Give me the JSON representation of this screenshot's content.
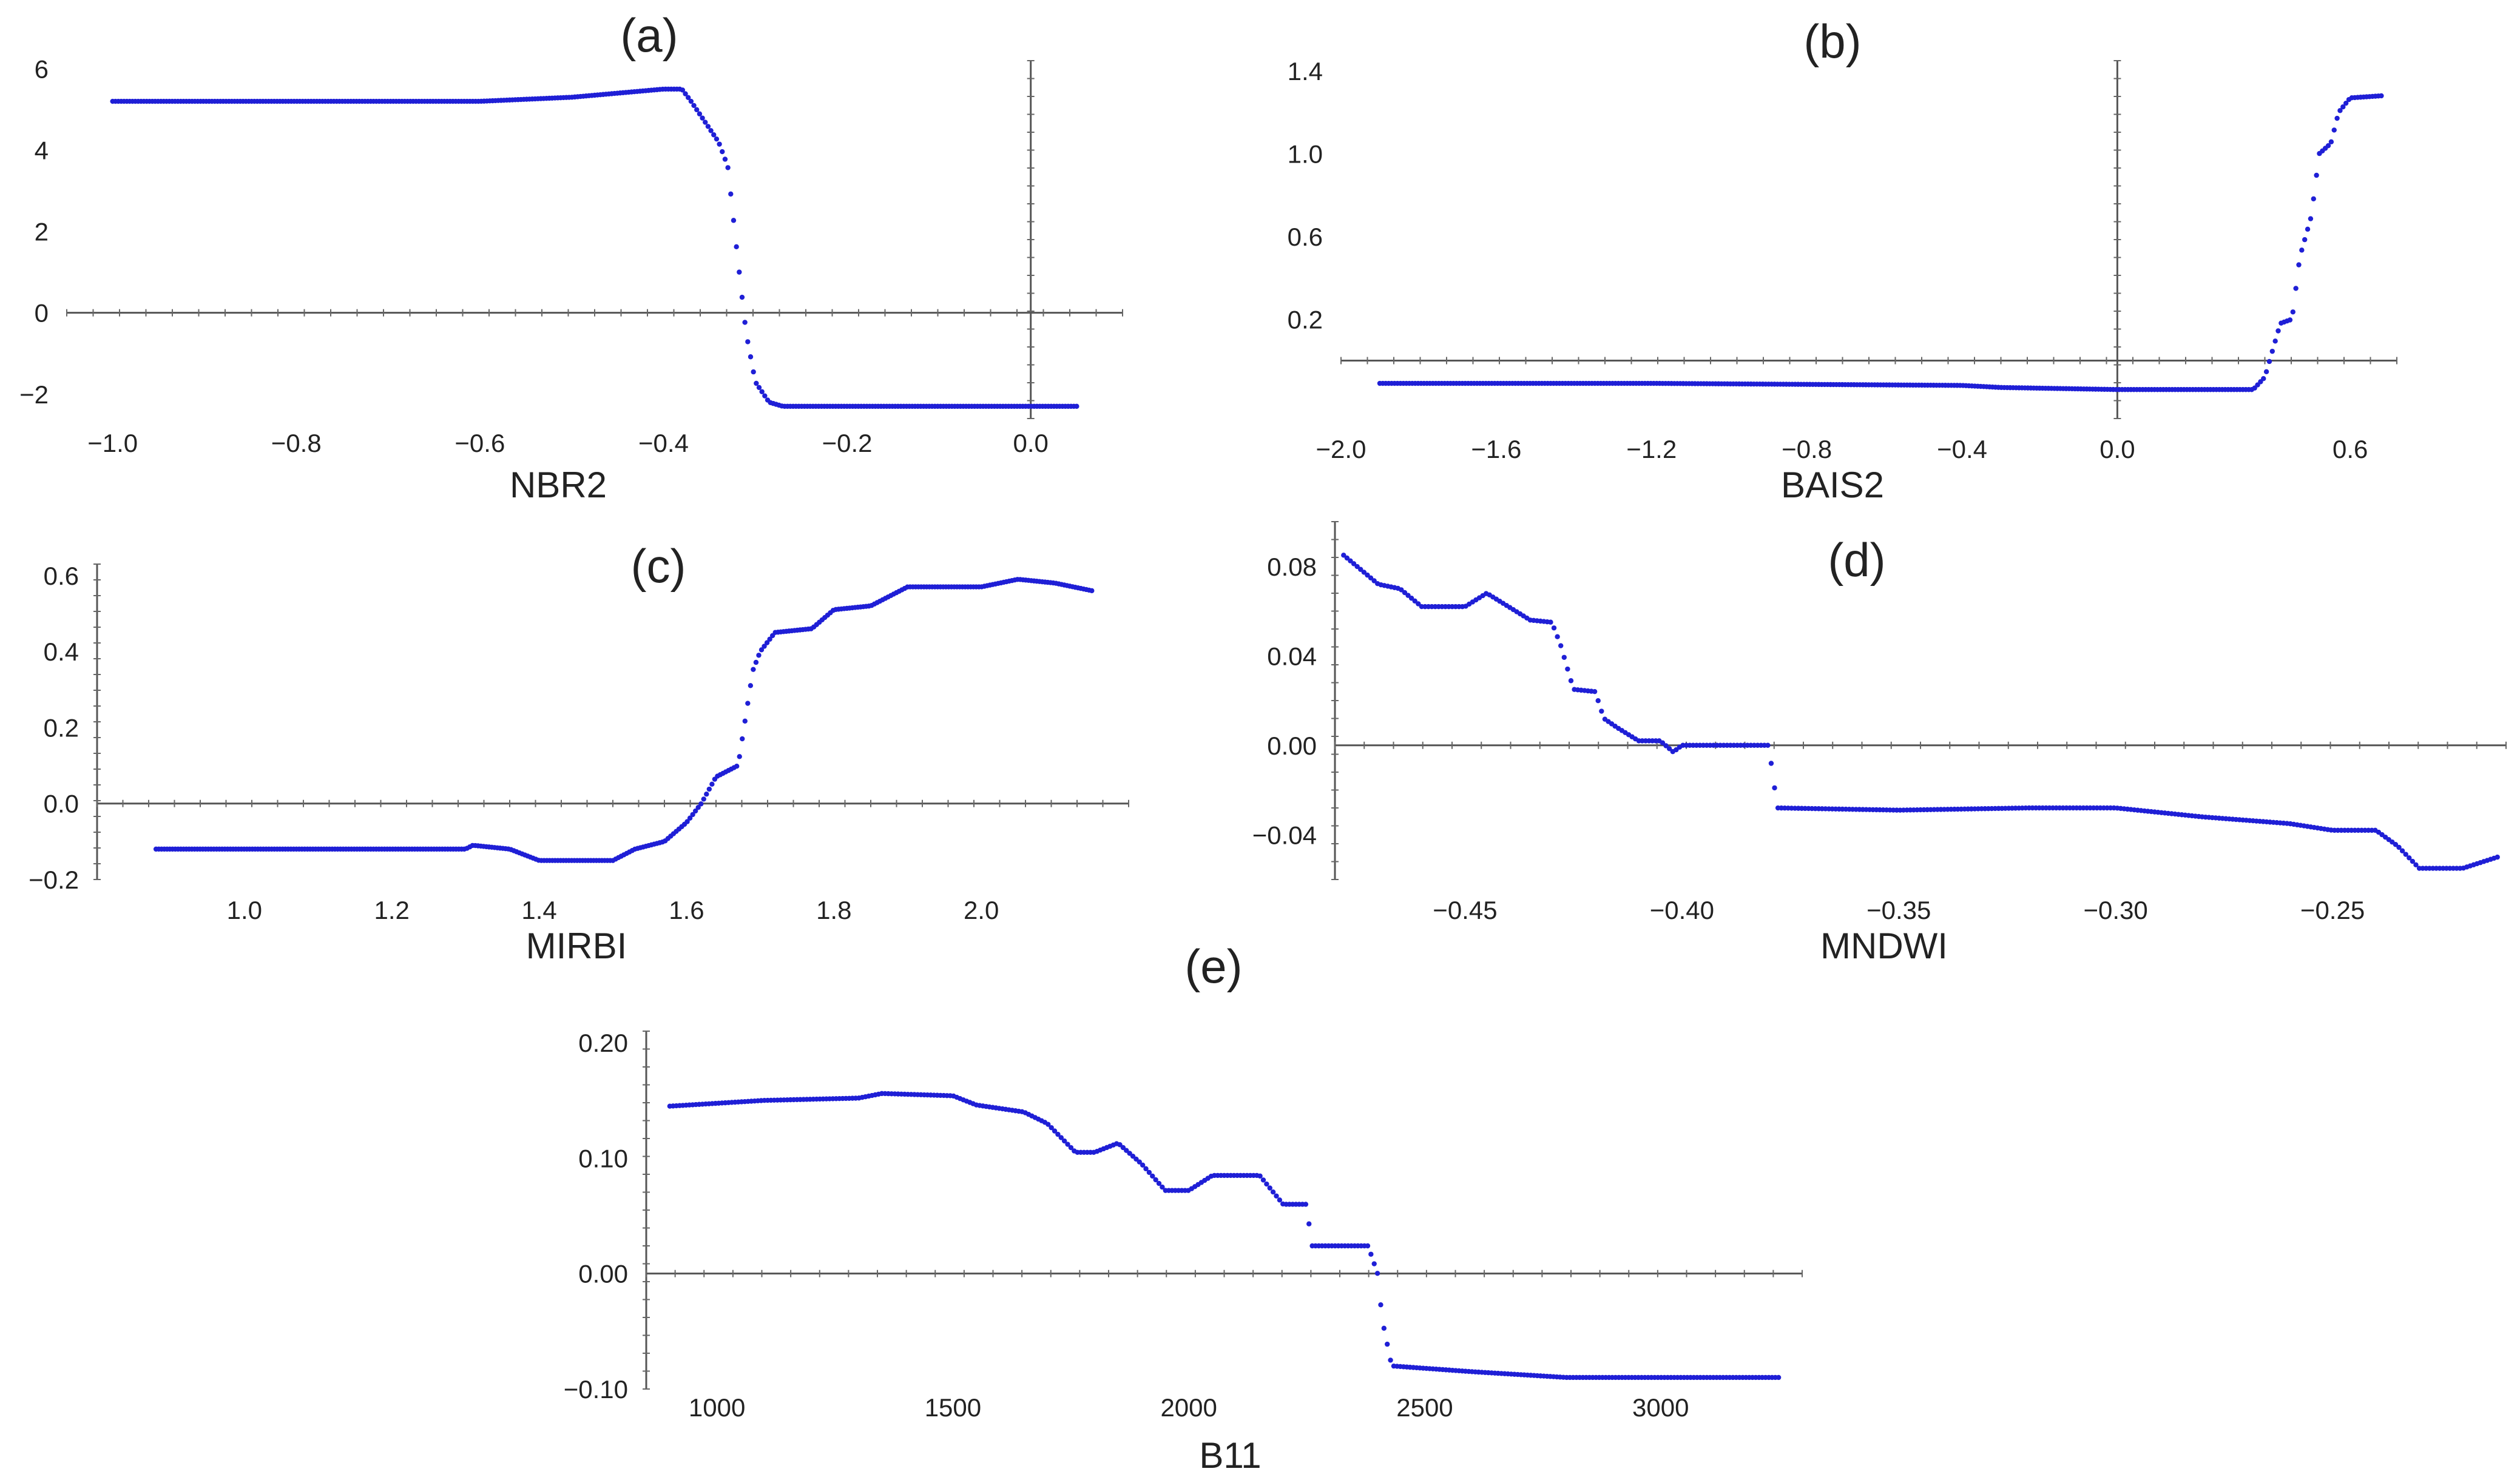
{
  "figure": {
    "panels": [
      "a",
      "b",
      "c",
      "d",
      "e"
    ],
    "point_color": "#1f1fd6",
    "axis_color": "#555555"
  },
  "chart_data": [
    {
      "id": "a",
      "label": "(a)",
      "type": "scatter",
      "title": "",
      "xlabel": "NBR2",
      "ylabel": "",
      "xlim": [
        -1.05,
        0.1
      ],
      "ylim": [
        -2.6,
        6.2
      ],
      "xticks": [
        -1.0,
        -0.8,
        -0.6,
        -0.4,
        -0.2,
        0.0
      ],
      "xtick_labels": [
        "−1.0",
        "−0.8",
        "−0.6",
        "−0.4",
        "−0.2",
        "0.0"
      ],
      "yticks": [
        6,
        4,
        2,
        0,
        -2
      ],
      "ytick_labels": [
        "6",
        "4",
        "2",
        "0",
        "−2"
      ],
      "curve": [
        [
          -1.0,
          5.2
        ],
        [
          -0.6,
          5.2
        ],
        [
          -0.5,
          5.3
        ],
        [
          -0.45,
          5.4
        ],
        [
          -0.4,
          5.5
        ],
        [
          -0.38,
          5.5
        ],
        [
          -0.37,
          5.2
        ],
        [
          -0.355,
          4.7
        ],
        [
          -0.34,
          4.2
        ],
        [
          -0.33,
          3.6
        ],
        [
          -0.32,
          1.5
        ],
        [
          -0.31,
          -0.5
        ],
        [
          -0.3,
          -1.7
        ],
        [
          -0.285,
          -2.2
        ],
        [
          -0.27,
          -2.3
        ],
        [
          -0.13,
          -2.3
        ],
        [
          0.05,
          -2.3
        ]
      ]
    },
    {
      "id": "b",
      "label": "(b)",
      "type": "scatter",
      "title": "",
      "xlabel": "BAIS2",
      "ylabel": "",
      "xlim": [
        -2.0,
        0.72
      ],
      "ylim": [
        -0.28,
        1.45
      ],
      "xticks": [
        -2.0,
        -1.6,
        -1.2,
        -0.8,
        -0.4,
        0.0,
        0.6
      ],
      "xtick_labels": [
        "−2.0",
        "−1.6",
        "−1.2",
        "−0.8",
        "−0.4",
        "0.0",
        "0.6"
      ],
      "yticks": [
        1.4,
        1.0,
        0.6,
        0.2
      ],
      "ytick_labels": [
        "1.4",
        "1.0",
        "0.6",
        "0.2"
      ],
      "curve": [
        [
          -1.9,
          -0.11
        ],
        [
          -1.2,
          -0.11
        ],
        [
          -0.4,
          -0.12
        ],
        [
          -0.3,
          -0.13
        ],
        [
          0.0,
          -0.14
        ],
        [
          0.35,
          -0.14
        ],
        [
          0.38,
          -0.08
        ],
        [
          0.4,
          0.05
        ],
        [
          0.42,
          0.18
        ],
        [
          0.45,
          0.2
        ],
        [
          0.47,
          0.5
        ],
        [
          0.5,
          0.7
        ],
        [
          0.52,
          1.0
        ],
        [
          0.55,
          1.05
        ],
        [
          0.57,
          1.2
        ],
        [
          0.6,
          1.27
        ],
        [
          0.68,
          1.28
        ]
      ]
    },
    {
      "id": "c",
      "label": "(c)",
      "type": "scatter",
      "title": "",
      "xlabel": "MIRBI",
      "ylabel": "",
      "xlim": [
        0.8,
        2.2
      ],
      "ylim": [
        -0.2,
        0.63
      ],
      "xticks": [
        1.0,
        1.2,
        1.4,
        1.6,
        1.8,
        2.0
      ],
      "xtick_labels": [
        "1.0",
        "1.2",
        "1.4",
        "1.6",
        "1.8",
        "2.0"
      ],
      "yticks": [
        0.6,
        0.4,
        0.2,
        0.0,
        -0.2
      ],
      "ytick_labels": [
        "0.6",
        "0.4",
        "0.2",
        "0.0",
        "−0.2"
      ],
      "curve": [
        [
          0.88,
          -0.12
        ],
        [
          1.1,
          -0.12
        ],
        [
          1.3,
          -0.12
        ],
        [
          1.31,
          -0.11
        ],
        [
          1.36,
          -0.12
        ],
        [
          1.4,
          -0.15
        ],
        [
          1.5,
          -0.15
        ],
        [
          1.53,
          -0.12
        ],
        [
          1.57,
          -0.1
        ],
        [
          1.6,
          -0.05
        ],
        [
          1.62,
          0.0
        ],
        [
          1.64,
          0.07
        ],
        [
          1.67,
          0.1
        ],
        [
          1.69,
          0.35
        ],
        [
          1.7,
          0.4
        ],
        [
          1.72,
          0.45
        ],
        [
          1.77,
          0.46
        ],
        [
          1.8,
          0.51
        ],
        [
          1.85,
          0.52
        ],
        [
          1.9,
          0.57
        ],
        [
          2.0,
          0.57
        ],
        [
          2.05,
          0.59
        ],
        [
          2.1,
          0.58
        ],
        [
          2.15,
          0.56
        ]
      ]
    },
    {
      "id": "d",
      "label": "(d)",
      "type": "scatter",
      "title": "",
      "xlabel": "MNDWI",
      "ylabel": "",
      "xlim": [
        -0.48,
        -0.21
      ],
      "ylim": [
        -0.06,
        0.1
      ],
      "xticks": [
        -0.45,
        -0.4,
        -0.35,
        -0.3,
        -0.25
      ],
      "xtick_labels": [
        "−0.45",
        "−0.40",
        "−0.35",
        "−0.30",
        "−0.25"
      ],
      "yticks": [
        0.08,
        0.04,
        0.0,
        -0.04
      ],
      "ytick_labels": [
        "0.08",
        "0.04",
        "0.00",
        "−0.04"
      ],
      "curve": [
        [
          -0.478,
          0.085
        ],
        [
          -0.47,
          0.072
        ],
        [
          -0.465,
          0.07
        ],
        [
          -0.46,
          0.062
        ],
        [
          -0.45,
          0.062
        ],
        [
          -0.445,
          0.068
        ],
        [
          -0.44,
          0.062
        ],
        [
          -0.435,
          0.056
        ],
        [
          -0.43,
          0.055
        ],
        [
          -0.428,
          0.045
        ],
        [
          -0.425,
          0.025
        ],
        [
          -0.42,
          0.024
        ],
        [
          -0.418,
          0.012
        ],
        [
          -0.415,
          0.008
        ],
        [
          -0.41,
          0.002
        ],
        [
          -0.405,
          0.002
        ],
        [
          -0.402,
          -0.003
        ],
        [
          -0.4,
          0.0
        ],
        [
          -0.38,
          0.0
        ],
        [
          -0.378,
          -0.028
        ],
        [
          -0.35,
          -0.029
        ],
        [
          -0.32,
          -0.028
        ],
        [
          -0.3,
          -0.028
        ],
        [
          -0.28,
          -0.032
        ],
        [
          -0.26,
          -0.035
        ],
        [
          -0.25,
          -0.038
        ],
        [
          -0.24,
          -0.038
        ],
        [
          -0.235,
          -0.045
        ],
        [
          -0.23,
          -0.055
        ],
        [
          -0.22,
          -0.055
        ],
        [
          -0.212,
          -0.05
        ]
      ]
    },
    {
      "id": "e",
      "label": "(e)",
      "type": "scatter",
      "title": "",
      "xlabel": "B11",
      "ylabel": "",
      "xlim": [
        850,
        3300
      ],
      "ylim": [
        -0.1,
        0.21
      ],
      "xticks": [
        1000,
        1500,
        2000,
        2500,
        3000
      ],
      "xtick_labels": [
        "1000",
        "1500",
        "2000",
        "2500",
        "3000"
      ],
      "yticks": [
        0.2,
        0.1,
        0.0,
        -0.1
      ],
      "ytick_labels": [
        "0.20",
        "0.10",
        "0.00",
        "−0.10"
      ],
      "curve": [
        [
          900,
          0.145
        ],
        [
          1100,
          0.15
        ],
        [
          1300,
          0.152
        ],
        [
          1350,
          0.156
        ],
        [
          1500,
          0.154
        ],
        [
          1550,
          0.146
        ],
        [
          1650,
          0.14
        ],
        [
          1700,
          0.13
        ],
        [
          1760,
          0.105
        ],
        [
          1800,
          0.105
        ],
        [
          1850,
          0.113
        ],
        [
          1900,
          0.095
        ],
        [
          1950,
          0.072
        ],
        [
          2000,
          0.072
        ],
        [
          2050,
          0.085
        ],
        [
          2150,
          0.085
        ],
        [
          2200,
          0.06
        ],
        [
          2250,
          0.06
        ],
        [
          2260,
          0.024
        ],
        [
          2380,
          0.024
        ],
        [
          2400,
          0.0
        ],
        [
          2410,
          -0.04
        ],
        [
          2430,
          -0.08
        ],
        [
          2600,
          -0.085
        ],
        [
          2800,
          -0.09
        ],
        [
          3000,
          -0.09
        ],
        [
          3250,
          -0.09
        ]
      ]
    }
  ]
}
